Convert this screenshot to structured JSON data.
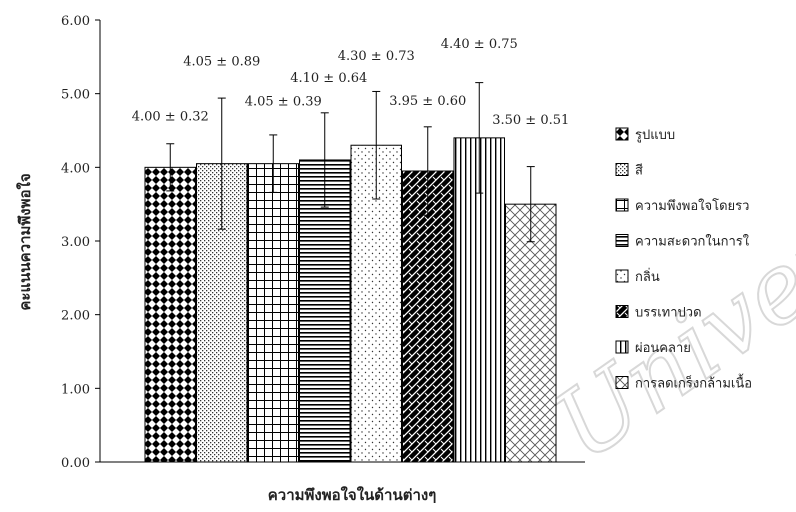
{
  "chart_data": {
    "type": "bar",
    "xlabel": "ความพึงพอใจในด้านต่างๆ",
    "ylabel": "คะแนนความพึงพอใจ",
    "ylim": [
      0,
      6
    ],
    "yticks": [
      "0.00",
      "1.00",
      "2.00",
      "3.00",
      "4.00",
      "5.00",
      "6.00"
    ],
    "grid": false,
    "legend_position": "right",
    "series": [
      {
        "name": "รูปแบบ",
        "value": 4.0,
        "error": 0.32,
        "label": "4.00 ± 0.32",
        "pattern": "diamonds"
      },
      {
        "name": "สี",
        "value": 4.05,
        "error": 0.89,
        "label": "4.05 ± 0.89",
        "pattern": "dots-fine"
      },
      {
        "name": "ความพึงพอใจโดยรว",
        "value": 4.05,
        "error": 0.39,
        "label": "4.05 ± 0.39",
        "pattern": "grid"
      },
      {
        "name": "ความสะดวกในการใ",
        "value": 4.1,
        "error": 0.64,
        "label": "4.10 ± 0.64",
        "pattern": "horizontal"
      },
      {
        "name": "กลิ่น",
        "value": 4.3,
        "error": 0.73,
        "label": "4.30 ± 0.73",
        "pattern": "dots-sparse"
      },
      {
        "name": "บรรเทาปวด",
        "value": 3.95,
        "error": 0.6,
        "label": "3.95 ± 0.60",
        "pattern": "weave"
      },
      {
        "name": "ผ่อนคลาย",
        "value": 4.4,
        "error": 0.75,
        "label": "4.40 ± 0.75",
        "pattern": "vertical"
      },
      {
        "name": "การลดเกร็งกล้ามเนื้อ",
        "value": 3.5,
        "error": 0.51,
        "label": "3.50 ± 0.51",
        "pattern": "crosshatch"
      }
    ]
  },
  "watermark": {
    "text": "University"
  }
}
